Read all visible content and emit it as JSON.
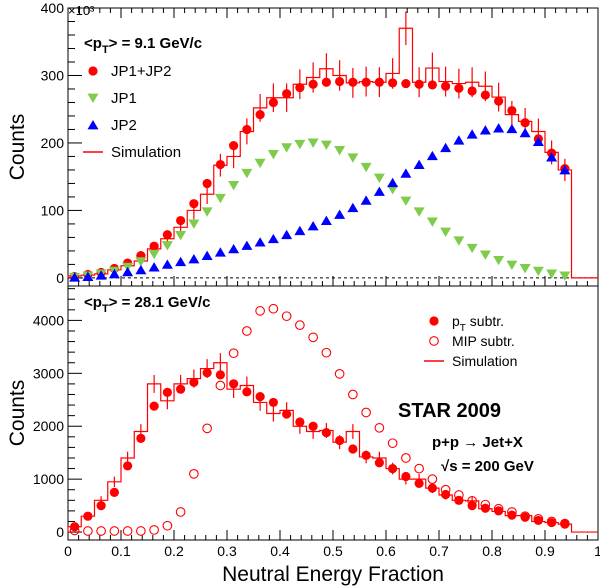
{
  "chart_data": [
    {
      "type": "scatter",
      "multiplier": "×10³",
      "ylabel": "Counts",
      "xlabel": "",
      "xlim": [
        0,
        1
      ],
      "ylim": [
        -12,
        400
      ],
      "yticks": [
        "0",
        "100",
        "200",
        "300",
        "400"
      ],
      "title": "<p_T> = 9.1 GeV/c",
      "legend_placement": "top-left",
      "dashed_zero_line": true,
      "x": [
        0.0125,
        0.0375,
        0.0625,
        0.0875,
        0.1125,
        0.1375,
        0.1625,
        0.1875,
        0.2125,
        0.2375,
        0.2625,
        0.2875,
        0.3125,
        0.3375,
        0.3625,
        0.3875,
        0.4125,
        0.4375,
        0.4625,
        0.4875,
        0.5125,
        0.5375,
        0.5625,
        0.5875,
        0.6125,
        0.6375,
        0.6625,
        0.6875,
        0.7125,
        0.7375,
        0.7625,
        0.7875,
        0.8125,
        0.8375,
        0.8625,
        0.8875,
        0.9125,
        0.9375
      ],
      "series": [
        {
          "name": "JP1+JP2",
          "marker": "circle",
          "color": "#ff0000",
          "values": [
            2,
            5,
            8,
            14,
            22,
            33,
            47,
            64,
            85,
            110,
            140,
            168,
            196,
            220,
            242,
            260,
            273,
            282,
            287,
            290,
            291,
            290,
            290,
            290,
            289,
            288,
            287,
            286,
            284,
            281,
            277,
            271,
            262,
            248,
            230,
            206,
            185,
            162
          ]
        },
        {
          "name": "JP1",
          "marker": "triangle-down",
          "color": "#7fcc4c",
          "values": [
            1,
            3,
            6,
            10,
            16,
            24,
            35,
            48,
            63,
            80,
            98,
            118,
            137,
            155,
            170,
            183,
            193,
            198,
            200,
            197,
            189,
            178,
            164,
            148,
            131,
            114,
            98,
            83,
            68,
            55,
            44,
            34,
            26,
            19,
            14,
            10,
            6,
            3
          ]
        },
        {
          "name": "JP2",
          "marker": "triangle-up",
          "color": "#0000ff",
          "values": [
            1,
            2,
            4,
            6,
            9,
            12,
            16,
            20,
            24,
            28,
            33,
            38,
            43,
            48,
            53,
            58,
            64,
            70,
            77,
            85,
            94,
            104,
            115,
            128,
            141,
            155,
            168,
            181,
            193,
            204,
            213,
            219,
            222,
            221,
            215,
            202,
            179,
            160
          ]
        },
        {
          "name": "Simulation",
          "marker": "histogram",
          "color": "#ff0000",
          "values": [
            3,
            4,
            6,
            12,
            18,
            25,
            43,
            58,
            75,
            100,
            124,
            167,
            180,
            217,
            252,
            267,
            267,
            287,
            297,
            310,
            300,
            289,
            291,
            290,
            303,
            370,
            290,
            311,
            291,
            288,
            290,
            284,
            268,
            242,
            232,
            217,
            186,
            160
          ]
        }
      ]
    },
    {
      "type": "scatter",
      "ylabel": "Counts",
      "xlabel": "Neutral Energy Fraction",
      "xlim": [
        0,
        1
      ],
      "ylim": [
        -150,
        4650
      ],
      "yticks": [
        "0",
        "1000",
        "2000",
        "3000",
        "4000"
      ],
      "xticks": [
        "0",
        "0.1",
        "0.2",
        "0.3",
        "0.4",
        "0.5",
        "0.6",
        "0.7",
        "0.8",
        "0.9",
        "1"
      ],
      "title": "<p_T> = 28.1 GeV/c",
      "legend_placement": "top-right",
      "annotations": {
        "experiment": "STAR 2009",
        "reaction": "p+p → Jet+X",
        "energy": "√s = 200 GeV"
      },
      "x": [
        0.0125,
        0.0375,
        0.0625,
        0.0875,
        0.1125,
        0.1375,
        0.1625,
        0.1875,
        0.2125,
        0.2375,
        0.2625,
        0.2875,
        0.3125,
        0.3375,
        0.3625,
        0.3875,
        0.4125,
        0.4375,
        0.4625,
        0.4875,
        0.5125,
        0.5375,
        0.5625,
        0.5875,
        0.6125,
        0.6375,
        0.6625,
        0.6875,
        0.7125,
        0.7375,
        0.7625,
        0.7875,
        0.8125,
        0.8375,
        0.8625,
        0.8875,
        0.9125,
        0.9375
      ],
      "series": [
        {
          "name": "p_T subtr.",
          "marker": "circle",
          "color": "#ff0000",
          "values": [
            100,
            300,
            500,
            750,
            1250,
            1770,
            2380,
            2640,
            2700,
            2830,
            3010,
            2970,
            2800,
            2650,
            2560,
            2450,
            2230,
            2080,
            2000,
            1880,
            1730,
            1570,
            1450,
            1310,
            1200,
            1050,
            920,
            830,
            710,
            600,
            500,
            450,
            400,
            320,
            280,
            220,
            180,
            150
          ]
        },
        {
          "name": "MIP subtr.",
          "marker": "open-circle",
          "color": "#ff0000",
          "values": [
            30,
            20,
            20,
            20,
            20,
            20,
            40,
            120,
            380,
            1100,
            1960,
            2770,
            3380,
            3800,
            4180,
            4220,
            4080,
            3910,
            3680,
            3390,
            2990,
            2600,
            2260,
            1970,
            1680,
            1400,
            1200,
            1000,
            800,
            700,
            590,
            520,
            440,
            380,
            300,
            250,
            200,
            160
          ]
        },
        {
          "name": "Simulation",
          "marker": "histogram",
          "color": "#ff0000",
          "values": [
            100,
            300,
            600,
            950,
            1400,
            1900,
            2800,
            2480,
            2800,
            2900,
            3090,
            3200,
            2700,
            2770,
            2450,
            2240,
            2300,
            2000,
            1900,
            1920,
            1700,
            1900,
            1420,
            1400,
            1200,
            1000,
            1000,
            830,
            700,
            600,
            590,
            440,
            390,
            310,
            310,
            200,
            180,
            150
          ]
        }
      ]
    }
  ]
}
